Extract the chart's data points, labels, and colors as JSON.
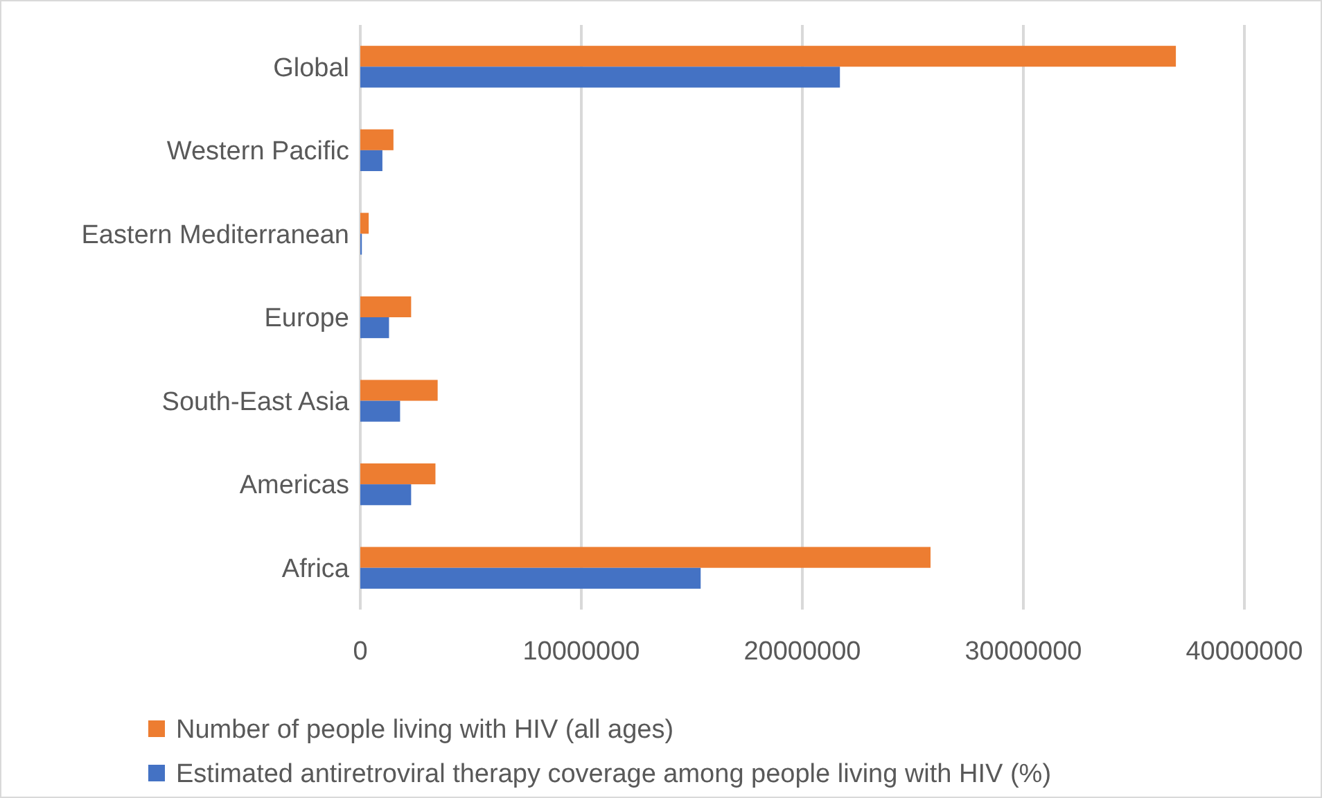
{
  "chart_data": {
    "type": "bar",
    "orientation": "horizontal",
    "categories": [
      "Global",
      "Western Pacific",
      "Eastern Mediterranean",
      "Europe",
      "South-East Asia",
      "Americas",
      "Africa"
    ],
    "series": [
      {
        "name": "Number of people living with HIV (all ages)",
        "color": "#ed7d31",
        "values": [
          36900000,
          1500000,
          380000,
          2300000,
          3500000,
          3400000,
          25800000
        ]
      },
      {
        "name": "Estimated antiretroviral therapy coverage among people living with HIV (%)",
        "color": "#4472c4",
        "values": [
          21700000,
          1000000,
          70000,
          1300000,
          1800000,
          2300000,
          15400000
        ]
      }
    ],
    "xlim": [
      0,
      40000000
    ],
    "xticks": [
      0,
      10000000,
      20000000,
      30000000,
      40000000
    ],
    "grid": "x",
    "legend": "bottom"
  }
}
